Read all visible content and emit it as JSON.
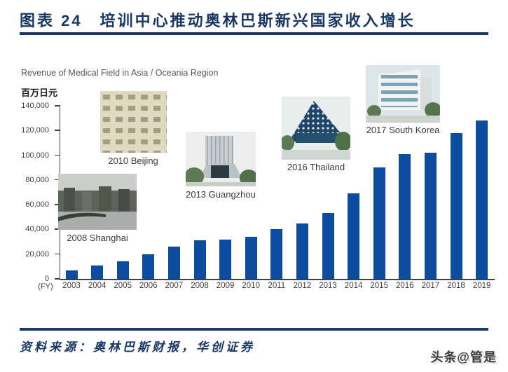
{
  "page": {
    "title": "图表 24　培训中心推动奥林巴斯新兴国家收入增长",
    "source_text": "资料来源：奥林巴斯财报，华创证券",
    "watermark": "头条@管是"
  },
  "chart": {
    "title": "Revenue of Medical Field in Asia / Oceania Region",
    "unit_label": "百万日元",
    "fy_label": "(FY)",
    "bar_color": "#0C4DA2",
    "axis_color": "#404040",
    "y_ticks": [
      "140,000",
      "120,000",
      "100,000",
      "80,000",
      "60,000",
      "40,000",
      "20,000",
      "0"
    ]
  },
  "annotations": [
    {
      "id": "shanghai",
      "label": "2008 Shanghai"
    },
    {
      "id": "beijing",
      "label": "2010 Beijing"
    },
    {
      "id": "guangzhou",
      "label": "2013 Guangzhou"
    },
    {
      "id": "thailand",
      "label": "2016 Thailand"
    },
    {
      "id": "southkorea",
      "label": "2017 South Korea"
    }
  ],
  "chart_data": {
    "type": "bar",
    "title": "Revenue of Medical Field in Asia / Oceania Region",
    "ylabel": "百万日元",
    "xlabel": "(FY)",
    "categories": [
      2003,
      2004,
      2005,
      2006,
      2007,
      2008,
      2009,
      2010,
      2011,
      2012,
      2013,
      2014,
      2015,
      2016,
      2017,
      2018,
      2019
    ],
    "values": [
      7000,
      11000,
      14000,
      20000,
      26000,
      31000,
      32000,
      34000,
      40000,
      45000,
      53000,
      69000,
      90000,
      101000,
      102000,
      118000,
      128000
    ],
    "ylim": [
      0,
      140000
    ],
    "grid": false,
    "legend_position": "none"
  }
}
